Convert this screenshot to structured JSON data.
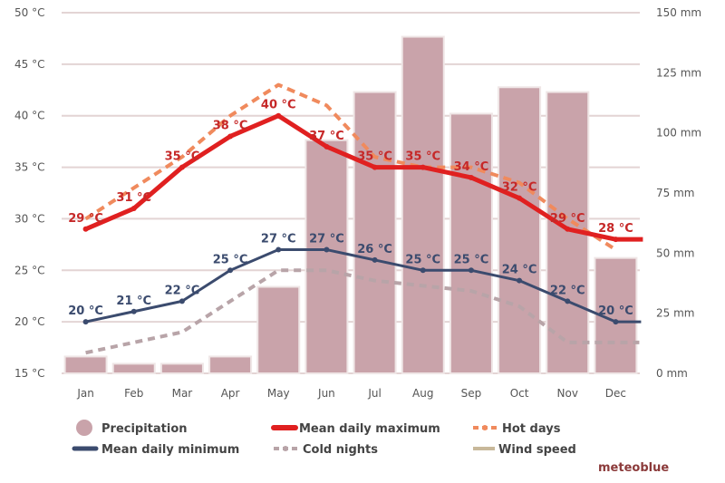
{
  "chart_data": {
    "type": "bar+line",
    "categories": [
      "Jan",
      "Feb",
      "Mar",
      "Apr",
      "May",
      "Jun",
      "Jul",
      "Aug",
      "Sep",
      "Oct",
      "Nov",
      "Dec"
    ],
    "left_axis": {
      "ticks": [
        15,
        20,
        25,
        30,
        35,
        40,
        45,
        50
      ],
      "unit": "°C",
      "range": [
        15,
        50
      ]
    },
    "right_axis": {
      "ticks": [
        0,
        25,
        50,
        75,
        100,
        125,
        150
      ],
      "unit": "mm",
      "range": [
        0,
        150
      ]
    },
    "precipitation": {
      "name": "Precipitation",
      "color": "#c9a3aa",
      "values": [
        7,
        4,
        4,
        7,
        36,
        97,
        117,
        140,
        108,
        119,
        117,
        48
      ]
    },
    "mean_max": {
      "name": "Mean daily maximum",
      "color": "#e02020",
      "values": [
        29,
        31,
        35,
        38,
        40,
        37,
        35,
        35,
        34,
        32,
        29,
        28
      ],
      "labels": [
        "29 °C",
        "31 °C",
        "35 °C",
        "38 °C",
        "40 °C",
        "37 °C",
        "35 °C",
        "35 °C",
        "34 °C",
        "32 °C",
        "29 °C",
        "28 °C"
      ]
    },
    "hot_days": {
      "name": "Hot days",
      "color": "#f08a5d",
      "values": [
        30,
        33,
        36,
        40,
        43,
        41,
        36,
        35,
        35,
        33.5,
        30,
        27
      ]
    },
    "mean_min": {
      "name": "Mean daily minimum",
      "color": "#3b4b6e",
      "values": [
        20,
        21,
        22,
        25,
        27,
        27,
        26,
        25,
        25,
        24,
        22,
        20
      ],
      "labels": [
        "20 °C",
        "21 °C",
        "22 °C",
        "25 °C",
        "27 °C",
        "27 °C",
        "26 °C",
        "25 °C",
        "25 °C",
        "24 °C",
        "22 °C",
        "20 °C"
      ]
    },
    "cold_nights": {
      "name": "Cold nights",
      "color": "#b8a4a8",
      "values": [
        17,
        18,
        19,
        22,
        25,
        25,
        24,
        23.5,
        23,
        21.5,
        18,
        18
      ]
    },
    "wind_speed": {
      "name": "Wind speed",
      "color": "#c8b89a",
      "values": []
    },
    "grid": true,
    "legend": "bottom"
  },
  "brand": "meteoblue"
}
